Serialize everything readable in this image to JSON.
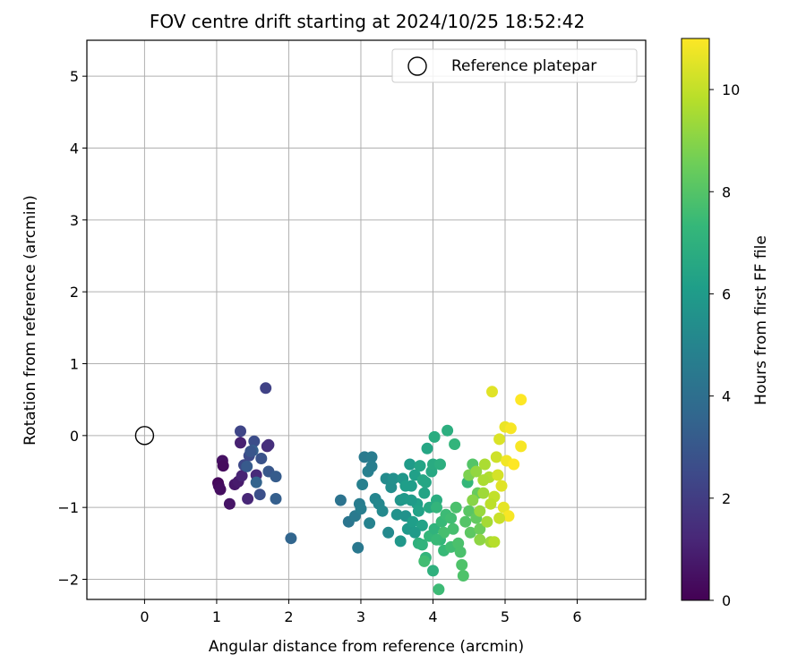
{
  "chart_data": {
    "type": "scatter",
    "title": "FOV centre drift starting at 2024/10/25 18:52:42",
    "xlabel": "Angular distance from reference (arcmin)",
    "ylabel": "Rotation from reference (arcmin)",
    "xlim": [
      -0.8,
      6.95
    ],
    "ylim": [
      -2.28,
      5.5
    ],
    "xticks": [
      0,
      1,
      2,
      3,
      4,
      5,
      6
    ],
    "yticks": [
      -2,
      -1,
      0,
      1,
      2,
      3,
      4,
      5
    ],
    "grid": true,
    "legend": {
      "placement": "top-right",
      "entries": [
        "Reference platepar"
      ]
    },
    "reference_point": {
      "x": 0,
      "y": 0,
      "label": "Reference platepar"
    },
    "colorbar": {
      "label": "Hours from first FF file",
      "range": [
        0,
        11
      ],
      "ticks": [
        0,
        2,
        4,
        6,
        8,
        10
      ],
      "colormap": "viridis",
      "color_stops": [
        "#440154",
        "#482878",
        "#3e4989",
        "#31688e",
        "#26828e",
        "#1f9e89",
        "#35b779",
        "#6ece58",
        "#b5de2b",
        "#fde725"
      ]
    },
    "series": [
      {
        "name": "Hours from first FF file",
        "points": [
          [
            1.02,
            -0.66,
            0.2
          ],
          [
            1.03,
            -0.7,
            0.3
          ],
          [
            1.05,
            -0.75,
            0.4
          ],
          [
            1.08,
            -0.35,
            0.5
          ],
          [
            1.09,
            -0.42,
            0.3
          ],
          [
            1.18,
            -0.95,
            0.6
          ],
          [
            1.25,
            -0.68,
            0.7
          ],
          [
            1.3,
            -0.64,
            0.8
          ],
          [
            1.33,
            -0.1,
            1.0
          ],
          [
            1.35,
            -0.56,
            1.1
          ],
          [
            1.43,
            -0.88,
            1.2
          ],
          [
            1.55,
            -0.55,
            1.3
          ],
          [
            1.7,
            -0.15,
            1.4
          ],
          [
            1.72,
            -0.13,
            1.5
          ],
          [
            1.33,
            0.06,
            2.3
          ],
          [
            1.38,
            -0.41,
            2.4
          ],
          [
            1.45,
            -0.28,
            2.5
          ],
          [
            1.52,
            -0.08,
            2.6
          ],
          [
            1.6,
            -0.82,
            2.7
          ],
          [
            1.62,
            -0.32,
            2.8
          ],
          [
            1.68,
            0.66,
            2.2
          ],
          [
            1.72,
            -0.5,
            3.0
          ],
          [
            1.82,
            -0.57,
            3.2
          ],
          [
            1.82,
            -0.88,
            3.3
          ],
          [
            1.55,
            -0.65,
            3.5
          ],
          [
            1.42,
            -0.43,
            3.1
          ],
          [
            1.5,
            -0.21,
            3.3
          ],
          [
            1.47,
            -0.22,
            2.9
          ],
          [
            2.03,
            -1.43,
            3.6
          ],
          [
            2.72,
            -0.9,
            4.2
          ],
          [
            2.83,
            -1.2,
            4.3
          ],
          [
            2.92,
            -1.12,
            4.5
          ],
          [
            2.96,
            -1.56,
            4.4
          ],
          [
            2.98,
            -0.95,
            4.6
          ],
          [
            3.0,
            -1.02,
            4.7
          ],
          [
            3.02,
            -0.68,
            4.8
          ],
          [
            3.05,
            -0.3,
            4.5
          ],
          [
            3.1,
            -0.5,
            4.8
          ],
          [
            3.12,
            -1.22,
            4.9
          ],
          [
            3.15,
            -0.3,
            4.6
          ],
          [
            3.15,
            -0.43,
            4.7
          ],
          [
            3.2,
            -0.88,
            5.0
          ],
          [
            3.25,
            -0.95,
            5.1
          ],
          [
            3.3,
            -1.05,
            5.2
          ],
          [
            3.35,
            -0.6,
            5.3
          ],
          [
            3.38,
            -1.35,
            5.2
          ],
          [
            3.42,
            -0.72,
            5.4
          ],
          [
            3.45,
            -0.6,
            5.5
          ],
          [
            3.5,
            -1.1,
            5.6
          ],
          [
            3.55,
            -0.9,
            5.7
          ],
          [
            3.55,
            -1.47,
            5.8
          ],
          [
            3.58,
            -0.6,
            5.8
          ],
          [
            3.6,
            -0.88,
            5.9
          ],
          [
            3.62,
            -1.12,
            5.6
          ],
          [
            3.65,
            -1.3,
            5.9
          ],
          [
            3.68,
            -0.4,
            6.0
          ],
          [
            3.7,
            -0.7,
            6.1
          ],
          [
            3.72,
            -1.2,
            6.1
          ],
          [
            3.75,
            -0.55,
            6.2
          ],
          [
            3.78,
            -0.95,
            6.2
          ],
          [
            3.8,
            -1.05,
            6.3
          ],
          [
            3.82,
            -0.42,
            6.4
          ],
          [
            3.85,
            -1.25,
            6.3
          ],
          [
            3.88,
            -0.8,
            6.4
          ],
          [
            3.9,
            -0.65,
            6.5
          ],
          [
            3.92,
            -0.18,
            6.5
          ],
          [
            3.95,
            -1.0,
            6.6
          ],
          [
            3.98,
            -0.5,
            6.6
          ],
          [
            4.0,
            -0.4,
            6.7
          ],
          [
            4.02,
            -0.02,
            6.8
          ],
          [
            4.05,
            -0.9,
            6.8
          ],
          [
            4.1,
            -0.4,
            6.9
          ],
          [
            3.62,
            -0.7,
            6.1
          ],
          [
            3.7,
            -0.9,
            6.0
          ],
          [
            3.75,
            -1.35,
            6.0
          ],
          [
            3.86,
            -0.62,
            6.5
          ],
          [
            3.8,
            -1.5,
            7.0
          ],
          [
            3.85,
            -1.52,
            7.1
          ],
          [
            3.9,
            -1.7,
            7.2
          ],
          [
            3.95,
            -1.4,
            7.3
          ],
          [
            4.0,
            -1.88,
            7.0
          ],
          [
            4.02,
            -1.3,
            7.1
          ],
          [
            4.05,
            -1.0,
            7.2
          ],
          [
            4.08,
            -2.14,
            7.5
          ],
          [
            4.1,
            -1.45,
            7.3
          ],
          [
            4.12,
            -1.2,
            7.4
          ],
          [
            4.15,
            -1.6,
            7.4
          ],
          [
            4.18,
            -1.1,
            7.5
          ],
          [
            4.2,
            0.07,
            6.9
          ],
          [
            4.25,
            -1.55,
            7.6
          ],
          [
            4.28,
            -1.3,
            7.7
          ],
          [
            4.3,
            -0.12,
            7.2
          ],
          [
            4.32,
            -1.0,
            7.8
          ],
          [
            4.35,
            -1.5,
            7.8
          ],
          [
            4.4,
            -1.8,
            7.9
          ],
          [
            4.42,
            -1.95,
            7.9
          ],
          [
            4.45,
            -1.2,
            8.0
          ],
          [
            4.48,
            -0.65,
            7.3
          ],
          [
            4.5,
            -1.05,
            8.1
          ],
          [
            4.52,
            -1.35,
            8.2
          ],
          [
            4.55,
            -0.4,
            8.0
          ],
          [
            4.6,
            -1.15,
            8.3
          ],
          [
            4.62,
            -0.8,
            8.4
          ],
          [
            4.65,
            -1.3,
            8.5
          ],
          [
            3.88,
            -1.75,
            7.6
          ],
          [
            4.15,
            -1.35,
            7.7
          ],
          [
            4.05,
            -1.45,
            7.4
          ],
          [
            4.25,
            -1.15,
            7.6
          ],
          [
            4.38,
            -1.62,
            7.8
          ],
          [
            4.5,
            -0.55,
            8.8
          ],
          [
            4.55,
            -0.9,
            9.0
          ],
          [
            4.6,
            -0.5,
            9.2
          ],
          [
            4.65,
            -1.05,
            9.3
          ],
          [
            4.7,
            -0.8,
            9.4
          ],
          [
            4.72,
            -0.4,
            9.6
          ],
          [
            4.75,
            -1.2,
            9.5
          ],
          [
            4.78,
            -0.58,
            9.7
          ],
          [
            4.8,
            -1.48,
            9.4
          ],
          [
            4.82,
            0.61,
            10.5
          ],
          [
            4.85,
            -0.85,
            10.0
          ],
          [
            4.88,
            -0.3,
            10.2
          ],
          [
            4.9,
            -0.55,
            10.3
          ],
          [
            4.92,
            -0.05,
            10.4
          ],
          [
            4.95,
            -0.7,
            10.5
          ],
          [
            4.98,
            -1.0,
            10.6
          ],
          [
            5.0,
            0.12,
            10.7
          ],
          [
            5.02,
            -0.35,
            10.8
          ],
          [
            5.05,
            -1.12,
            10.9
          ],
          [
            5.08,
            0.1,
            10.9
          ],
          [
            5.12,
            -0.4,
            11.0
          ],
          [
            5.22,
            0.5,
            11.0
          ],
          [
            5.22,
            -0.15,
            10.9
          ],
          [
            4.65,
            -1.45,
            9.1
          ],
          [
            4.85,
            -1.48,
            9.8
          ],
          [
            4.92,
            -1.15,
            10.1
          ],
          [
            4.8,
            -0.95,
            9.9
          ],
          [
            4.7,
            -0.62,
            9.6
          ]
        ]
      }
    ]
  }
}
